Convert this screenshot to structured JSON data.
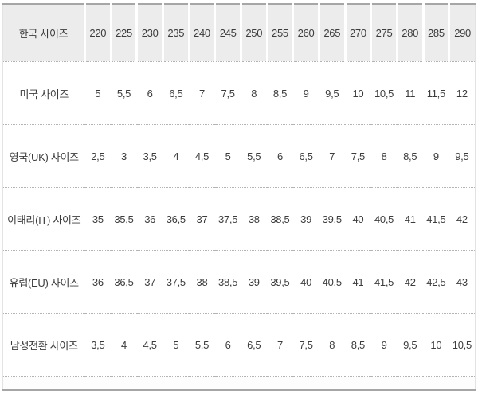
{
  "colors": {
    "page_bg": "#ffffff",
    "header_bg": "#ececec",
    "border": "#a6a6a6",
    "dotted": "#b3b3b3",
    "text": "#3c3c3c"
  },
  "chart_data": {
    "type": "table",
    "description_visible_text_only": "shoe size conversion table",
    "rows": [
      {
        "label": "한국 사이즈",
        "values": [
          "220",
          "225",
          "230",
          "235",
          "240",
          "245",
          "250",
          "255",
          "260",
          "265",
          "270",
          "275",
          "280",
          "285",
          "290"
        ]
      },
      {
        "label": "미국 사이즈",
        "values": [
          "5",
          "5,5",
          "6",
          "6,5",
          "7",
          "7,5",
          "8",
          "8,5",
          "9",
          "9,5",
          "10",
          "10,5",
          "11",
          "11,5",
          "12"
        ]
      },
      {
        "label": "영국(UK) 사이즈",
        "values": [
          "2,5",
          "3",
          "3,5",
          "4",
          "4,5",
          "5",
          "5,5",
          "6",
          "6,5",
          "7",
          "7,5",
          "8",
          "8,5",
          "9",
          "9,5"
        ]
      },
      {
        "label": "이태리(IT) 사이즈",
        "values": [
          "35",
          "35,5",
          "36",
          "36,5",
          "37",
          "37,5",
          "38",
          "38,5",
          "39",
          "39,5",
          "40",
          "40,5",
          "41",
          "41,5",
          "42"
        ]
      },
      {
        "label": "유럽(EU) 사이즈",
        "values": [
          "36",
          "36,5",
          "37",
          "37,5",
          "38",
          "38,5",
          "39",
          "39,5",
          "40",
          "40,5",
          "41",
          "41,5",
          "42",
          "42,5",
          "43"
        ]
      },
      {
        "label": "남성전환 사이즈",
        "values": [
          "3,5",
          "4",
          "4,5",
          "5",
          "5,5",
          "6",
          "6,5",
          "7",
          "7,5",
          "8",
          "8,5",
          "9",
          "9,5",
          "10",
          "10,5"
        ]
      }
    ]
  }
}
